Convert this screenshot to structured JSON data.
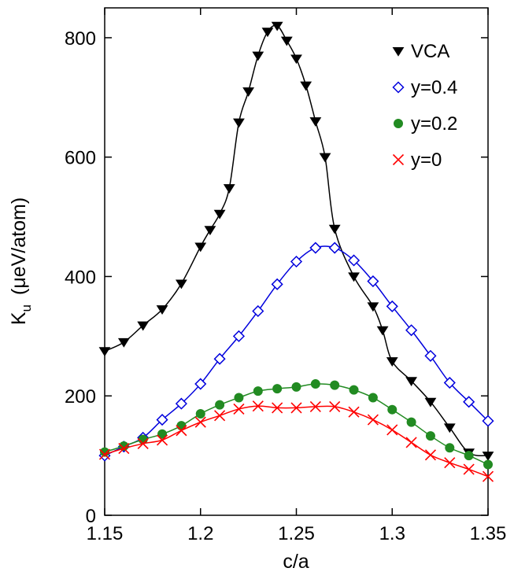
{
  "chart_data": {
    "type": "line",
    "xlabel": "c/a",
    "ylabel": "K",
    "ylabel_sub": "u",
    "ylabel_unit": "(μeV/atom)",
    "xlim": [
      1.15,
      1.35
    ],
    "ylim": [
      0,
      850
    ],
    "xticks": [
      "1.15",
      "1.2",
      "1.25",
      "1.3",
      "1.35"
    ],
    "yticks": [
      "0",
      "200",
      "400",
      "600",
      "800"
    ],
    "legend_position": "top-right",
    "grid": false,
    "series": [
      {
        "name": "VCA",
        "marker": "triangle-down",
        "color": "#000000",
        "x": [
          1.15,
          1.16,
          1.17,
          1.18,
          1.19,
          1.2,
          1.205,
          1.21,
          1.215,
          1.22,
          1.225,
          1.23,
          1.235,
          1.24,
          1.245,
          1.25,
          1.255,
          1.26,
          1.265,
          1.27,
          1.28,
          1.29,
          1.295,
          1.3,
          1.31,
          1.32,
          1.33,
          1.34,
          1.35
        ],
        "y": [
          275,
          290,
          318,
          345,
          388,
          450,
          478,
          505,
          548,
          658,
          710,
          770,
          810,
          820,
          795,
          765,
          720,
          660,
          600,
          480,
          400,
          350,
          310,
          258,
          225,
          190,
          147,
          105,
          100
        ]
      },
      {
        "name": "y=0.4",
        "marker": "diamond-open",
        "color": "#0000dd",
        "x": [
          1.15,
          1.16,
          1.17,
          1.18,
          1.19,
          1.2,
          1.21,
          1.22,
          1.23,
          1.24,
          1.25,
          1.26,
          1.27,
          1.28,
          1.29,
          1.3,
          1.31,
          1.32,
          1.33,
          1.34,
          1.35
        ],
        "y": [
          100,
          115,
          130,
          160,
          187,
          220,
          262,
          300,
          342,
          387,
          425,
          448,
          448,
          427,
          392,
          350,
          310,
          267,
          222,
          190,
          158
        ]
      },
      {
        "name": "y=0.2",
        "marker": "circle-filled",
        "color": "#228b22",
        "x": [
          1.15,
          1.16,
          1.17,
          1.18,
          1.19,
          1.2,
          1.21,
          1.22,
          1.23,
          1.24,
          1.25,
          1.26,
          1.27,
          1.28,
          1.29,
          1.3,
          1.31,
          1.32,
          1.33,
          1.34,
          1.35
        ],
        "y": [
          106,
          116,
          127,
          136,
          150,
          170,
          185,
          197,
          208,
          212,
          215,
          220,
          218,
          210,
          197,
          177,
          156,
          133,
          113,
          100,
          85
        ]
      },
      {
        "name": "y=0",
        "marker": "x",
        "color": "#ff0000",
        "x": [
          1.15,
          1.16,
          1.17,
          1.18,
          1.19,
          1.2,
          1.21,
          1.22,
          1.23,
          1.24,
          1.25,
          1.26,
          1.27,
          1.28,
          1.29,
          1.3,
          1.31,
          1.32,
          1.33,
          1.34,
          1.35
        ],
        "y": [
          102,
          112,
          120,
          126,
          142,
          156,
          167,
          178,
          183,
          180,
          180,
          182,
          182,
          173,
          160,
          143,
          122,
          101,
          88,
          77,
          65
        ]
      }
    ]
  }
}
